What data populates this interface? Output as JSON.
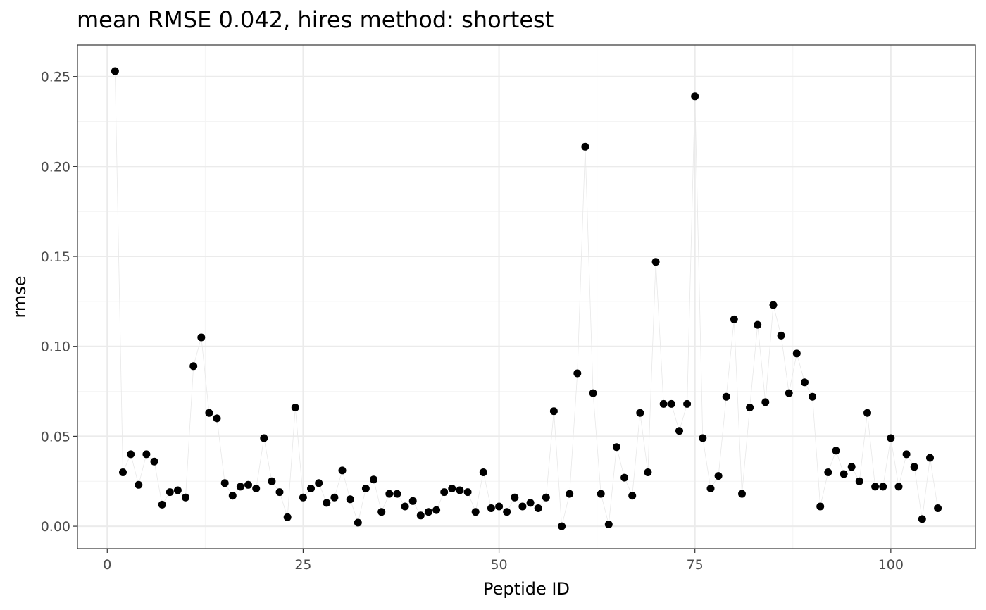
{
  "chart_data": {
    "type": "scatter",
    "title": "mean RMSE 0.042, hires method: shortest",
    "xlabel": "Peptide ID",
    "ylabel": "rmse",
    "xlim": [
      -3.8,
      110.8
    ],
    "ylim": [
      -0.0125,
      0.2675
    ],
    "x_ticks": [
      0,
      25,
      50,
      75,
      100
    ],
    "y_ticks": [
      0.0,
      0.05,
      0.1,
      0.15,
      0.2,
      0.25
    ],
    "x_tick_labels": [
      "0",
      "25",
      "50",
      "75",
      "100"
    ],
    "y_tick_labels": [
      "0.00",
      "0.05",
      "0.10",
      "0.15",
      "0.20",
      "0.25"
    ],
    "grid": true,
    "legend": "none",
    "connecting_line": true,
    "colors": {
      "point": "#000000",
      "line": "#e8e8e8",
      "grid_major": "#ebebeb",
      "grid_minor": "#f4f4f4",
      "panel_border": "#333333"
    },
    "x": [
      1,
      2,
      3,
      4,
      5,
      6,
      7,
      8,
      9,
      10,
      11,
      12,
      13,
      14,
      15,
      16,
      17,
      18,
      19,
      20,
      21,
      22,
      23,
      24,
      25,
      26,
      27,
      28,
      29,
      30,
      31,
      32,
      33,
      34,
      35,
      36,
      37,
      38,
      39,
      40,
      41,
      42,
      43,
      44,
      45,
      46,
      47,
      48,
      49,
      50,
      51,
      52,
      53,
      54,
      55,
      56,
      57,
      58,
      59,
      60,
      61,
      62,
      63,
      64,
      65,
      66,
      67,
      68,
      69,
      70,
      71,
      72,
      73,
      74,
      75,
      76,
      77,
      78,
      79,
      80,
      81,
      82,
      83,
      84,
      85,
      86,
      87,
      88,
      89,
      90,
      91,
      92,
      93,
      94,
      95,
      96,
      97,
      98,
      99,
      100,
      101,
      102,
      103,
      104,
      105,
      106
    ],
    "y": [
      0.253,
      0.03,
      0.04,
      0.023,
      0.04,
      0.036,
      0.012,
      0.019,
      0.02,
      0.016,
      0.089,
      0.105,
      0.063,
      0.06,
      0.024,
      0.017,
      0.022,
      0.023,
      0.021,
      0.049,
      0.025,
      0.019,
      0.005,
      0.066,
      0.016,
      0.021,
      0.024,
      0.013,
      0.016,
      0.031,
      0.015,
      0.002,
      0.021,
      0.026,
      0.008,
      0.018,
      0.018,
      0.011,
      0.014,
      0.006,
      0.008,
      0.009,
      0.019,
      0.021,
      0.02,
      0.019,
      0.008,
      0.03,
      0.01,
      0.011,
      0.008,
      0.016,
      0.011,
      0.013,
      0.01,
      0.016,
      0.064,
      0.0,
      0.018,
      0.085,
      0.211,
      0.074,
      0.018,
      0.001,
      0.044,
      0.027,
      0.017,
      0.063,
      0.03,
      0.147,
      0.068,
      0.068,
      0.053,
      0.068,
      0.239,
      0.049,
      0.021,
      0.028,
      0.072,
      0.115,
      0.018,
      0.066,
      0.112,
      0.069,
      0.123,
      0.106,
      0.074,
      0.096,
      0.08,
      0.072,
      0.011,
      0.03,
      0.042,
      0.029,
      0.033,
      0.025,
      0.063,
      0.022,
      0.022,
      0.049,
      0.022,
      0.04,
      0.033,
      0.004,
      0.038,
      0.01
    ]
  }
}
